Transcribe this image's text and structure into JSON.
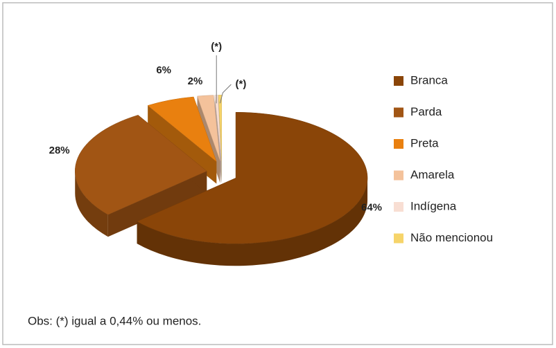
{
  "chart_data": {
    "type": "pie",
    "categories": [
      "Branca",
      "Parda",
      "Preta",
      "Amarela",
      "Indígena",
      "Não mencionou"
    ],
    "values": [
      64,
      28,
      6,
      2,
      0.4,
      0.4
    ],
    "value_labels": [
      "64%",
      "28%",
      "6%",
      "2%",
      "(*)",
      "(*)"
    ],
    "colors": [
      "#8a4508",
      "#a15514",
      "#e9800f",
      "#f4c29b",
      "#f8ded3",
      "#f6d46a"
    ],
    "legend": "right",
    "note": "Obs: (*) igual a 0,44% ou menos."
  }
}
